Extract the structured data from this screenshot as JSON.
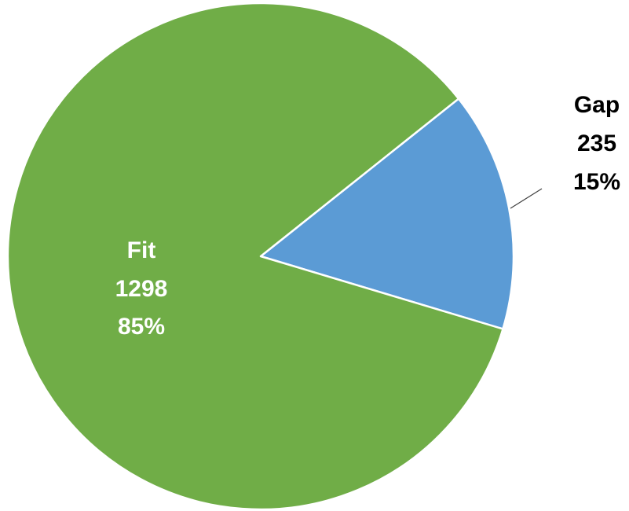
{
  "chart_data": {
    "type": "pie",
    "title": "",
    "slices": [
      {
        "label": "Gap",
        "value": 235,
        "value_text": "235",
        "percent_text": "15%",
        "color": "#5B9BD5",
        "label_color": "#000000"
      },
      {
        "label": "Fit",
        "value": 1298,
        "value_text": "1298",
        "percent_text": "85%",
        "color": "#70AD47",
        "label_color": "#ffffff"
      }
    ],
    "legend": false
  }
}
